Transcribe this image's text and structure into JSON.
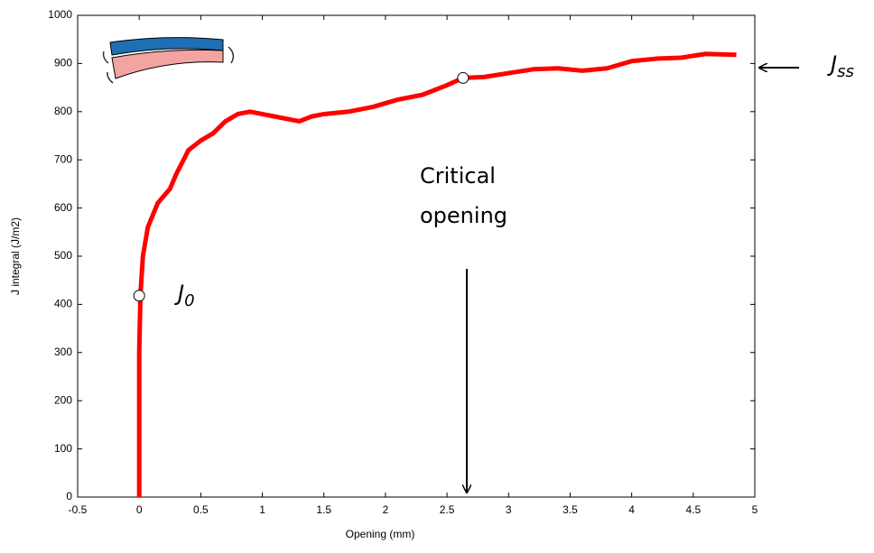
{
  "chart_data": {
    "type": "line",
    "x_label": "Opening (mm)",
    "y_label": "J integral (J/m2)",
    "xlim": [
      -0.5,
      5
    ],
    "ylim": [
      0,
      1000
    ],
    "xticks": [
      -0.5,
      0,
      0.5,
      1,
      1.5,
      2,
      2.5,
      3,
      3.5,
      4,
      4.5,
      5
    ],
    "yticks": [
      0,
      100,
      200,
      300,
      400,
      500,
      600,
      700,
      800,
      900,
      1000
    ],
    "series": [
      {
        "color": "#ff0000",
        "x": [
          0,
          0,
          0,
          0.01,
          0.03,
          0.07,
          0.15,
          0.25,
          0.3,
          0.4,
          0.5,
          0.6,
          0.7,
          0.8,
          0.9,
          1.0,
          1.1,
          1.3,
          1.4,
          1.5,
          1.7,
          1.9,
          2.1,
          2.3,
          2.5,
          2.63,
          2.8,
          3.0,
          3.2,
          3.4,
          3.6,
          3.8,
          4.0,
          4.2,
          4.4,
          4.6,
          4.85
        ],
        "values": [
          0,
          100,
          300,
          420,
          500,
          560,
          610,
          640,
          670,
          720,
          740,
          755,
          780,
          795,
          800,
          795,
          790,
          780,
          790,
          795,
          800,
          810,
          825,
          835,
          855,
          870,
          872,
          880,
          888,
          890,
          885,
          890,
          905,
          910,
          912,
          920,
          918
        ]
      }
    ],
    "markers": [
      {
        "x": 0,
        "y": 418
      },
      {
        "x": 2.63,
        "y": 870
      }
    ],
    "annotations": [
      {
        "text": "J",
        "subscript": "0"
      },
      {
        "text": "J",
        "subscript": "ss"
      },
      {
        "lines": [
          "Critical",
          "opening"
        ]
      }
    ]
  }
}
